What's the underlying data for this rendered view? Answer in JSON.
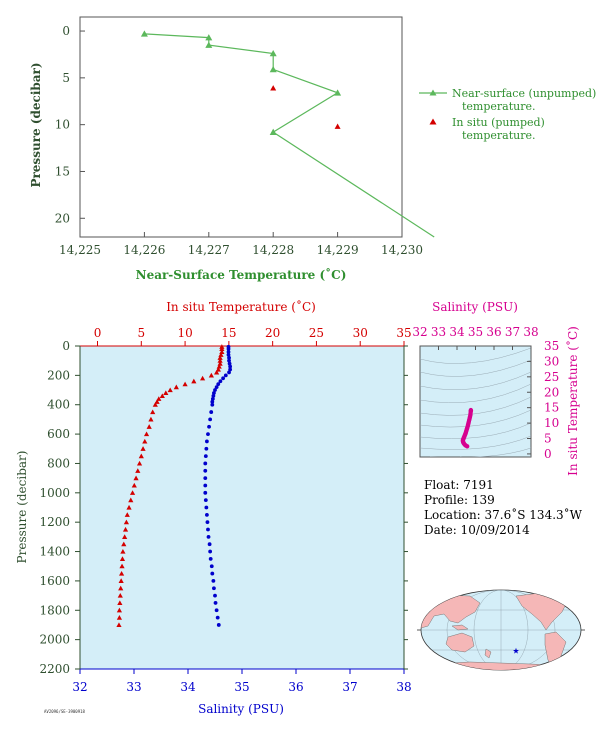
{
  "colors": {
    "top_series": "#5cb85c",
    "top_axis": "#2f4f2f",
    "red": "#d40000",
    "blue": "#0000cc",
    "magenta": "#d6008f",
    "plot_bg": "#d4eef8",
    "land": "#f5b7b7",
    "ocean": "#d4eef8"
  },
  "chart_data": [
    {
      "type": "line",
      "xlabel": "Near-Surface Temperature (˚C)",
      "ylabel": "Pressure (decibar)",
      "xlim": [
        14.225,
        14.23
      ],
      "ylim": [
        22,
        -1.5
      ],
      "x_ticks": [
        "14,225",
        "14,226",
        "14,227",
        "14,228",
        "14,229",
        "14,230"
      ],
      "y_ticks": [
        "0",
        "5",
        "10",
        "15",
        "20"
      ],
      "legend_position": "right",
      "series": [
        {
          "name": "Near-surface (unpumped) temperature.",
          "marker": "triangle",
          "x": [
            14.226,
            14.227,
            14.227,
            14.228,
            14.228,
            14.229,
            14.228,
            14.2305
          ],
          "y": [
            0.3,
            0.7,
            1.5,
            2.4,
            4.1,
            6.6,
            10.8,
            22
          ]
        },
        {
          "name": "In situ (pumped) temperature.",
          "marker": "triangle",
          "x": [
            14.228,
            14.229
          ],
          "y": [
            6.1,
            10.2
          ]
        }
      ]
    },
    {
      "type": "scatter",
      "top_xlabel": "In situ Temperature (˚C)",
      "bottom_xlabel": "Salinity (PSU)",
      "ylabel": "Pressure (decibar)",
      "temp_xlim": [
        -2,
        35
      ],
      "sal_xlim": [
        32,
        38
      ],
      "ylim": [
        2200,
        0
      ],
      "temp_ticks": [
        "0",
        "5",
        "10",
        "15",
        "20",
        "25",
        "30",
        "35"
      ],
      "sal_ticks": [
        "32",
        "33",
        "34",
        "35",
        "36",
        "37",
        "38"
      ],
      "y_ticks": [
        "0",
        "200",
        "400",
        "600",
        "800",
        "1000",
        "1200",
        "1400",
        "1600",
        "1800",
        "2000",
        "2200"
      ],
      "temperature_profile": {
        "pressure": [
          5,
          20,
          40,
          60,
          80,
          100,
          120,
          140,
          160,
          180,
          200,
          220,
          240,
          260,
          280,
          300,
          320,
          340,
          360,
          380,
          400,
          450,
          500,
          550,
          600,
          650,
          700,
          750,
          800,
          850,
          900,
          950,
          1000,
          1050,
          1100,
          1150,
          1200,
          1250,
          1300,
          1350,
          1400,
          1450,
          1500,
          1550,
          1600,
          1650,
          1700,
          1750,
          1800,
          1850,
          1900
        ],
        "temperature": [
          14.2,
          14.2,
          14.2,
          14.1,
          14.0,
          14.0,
          14.0,
          13.9,
          13.8,
          13.6,
          13.0,
          12.0,
          11.0,
          10.0,
          9.0,
          8.3,
          7.8,
          7.4,
          7.0,
          6.8,
          6.6,
          6.3,
          6.1,
          5.9,
          5.6,
          5.4,
          5.2,
          5.0,
          4.8,
          4.6,
          4.4,
          4.2,
          4.0,
          3.8,
          3.6,
          3.4,
          3.3,
          3.2,
          3.1,
          3.0,
          2.9,
          2.85,
          2.8,
          2.75,
          2.7,
          2.65,
          2.6,
          2.55,
          2.5,
          2.5,
          2.45
        ]
      },
      "salinity_profile": {
        "pressure": [
          5,
          20,
          40,
          60,
          80,
          100,
          120,
          140,
          160,
          180,
          200,
          220,
          240,
          260,
          280,
          300,
          320,
          340,
          360,
          380,
          400,
          450,
          500,
          550,
          600,
          650,
          700,
          750,
          800,
          850,
          900,
          950,
          1000,
          1050,
          1100,
          1150,
          1200,
          1250,
          1300,
          1350,
          1400,
          1450,
          1500,
          1550,
          1600,
          1650,
          1700,
          1750,
          1800,
          1850,
          1900
        ],
        "salinity": [
          34.75,
          34.75,
          34.75,
          34.75,
          34.76,
          34.76,
          34.77,
          34.78,
          34.78,
          34.76,
          34.7,
          34.65,
          34.6,
          34.56,
          34.53,
          34.5,
          34.48,
          34.47,
          34.46,
          34.45,
          34.45,
          34.43,
          34.41,
          34.39,
          34.37,
          34.35,
          34.34,
          34.33,
          34.32,
          34.32,
          34.32,
          34.32,
          34.32,
          34.33,
          34.34,
          34.35,
          34.36,
          34.37,
          34.38,
          34.4,
          34.41,
          34.42,
          34.44,
          34.45,
          34.47,
          34.48,
          34.5,
          34.51,
          34.53,
          34.55,
          34.57
        ]
      }
    },
    {
      "type": "scatter",
      "title": "Salinity (PSU)",
      "ylabel": "In situ Temperature (˚C)",
      "xlim": [
        32,
        38
      ],
      "ylim": [
        -1,
        35
      ],
      "x_ticks": [
        "32",
        "33",
        "34",
        "35",
        "36",
        "37",
        "38"
      ],
      "y_ticks": [
        "0",
        "5",
        "10",
        "15",
        "20",
        "25",
        "30",
        "35"
      ],
      "ts_points": {
        "salinity": [
          34.75,
          34.75,
          34.74,
          34.73,
          34.72,
          34.7,
          34.68,
          34.66,
          34.64,
          34.62,
          34.6,
          34.58,
          34.56,
          34.54,
          34.52,
          34.5,
          34.48,
          34.46,
          34.44,
          34.42,
          34.4,
          34.38,
          34.36,
          34.34,
          34.32,
          34.32,
          34.33,
          34.35,
          34.38,
          34.42,
          34.48,
          34.55
        ],
        "temperature": [
          14.2,
          14.0,
          13.6,
          13.0,
          12.5,
          12.0,
          11.5,
          11.0,
          10.5,
          10.0,
          9.5,
          9.0,
          8.6,
          8.2,
          7.8,
          7.4,
          7.0,
          6.6,
          6.3,
          6.0,
          5.7,
          5.4,
          5.1,
          4.8,
          4.5,
          4.2,
          3.9,
          3.6,
          3.3,
          3.0,
          2.7,
          2.45
        ]
      }
    }
  ],
  "info": {
    "float": "Float:  7191",
    "profile": "Profile:  139",
    "location": "Location:  37.6˚S  134.3˚W",
    "date": "Date:  10/09/2014"
  },
  "map": {
    "marker_icon": "star-icon"
  },
  "footer": {
    "stamp": "AV2096/SE-3900918"
  }
}
